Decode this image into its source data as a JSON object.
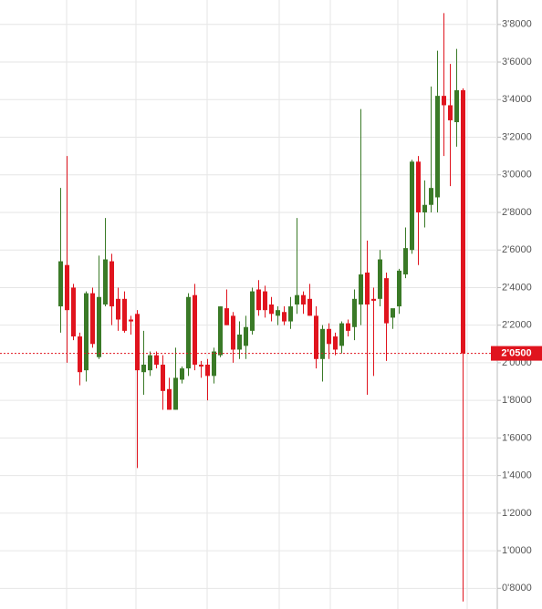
{
  "chart_data": {
    "type": "candlestick",
    "open": [
      2.3,
      2.52,
      2.4,
      2.14,
      1.96,
      2.37,
      2.03,
      2.31,
      2.54,
      2.34,
      2.34,
      2.23,
      2.26,
      1.95,
      1.96,
      2.04,
      1.99,
      1.86,
      1.75,
      1.91,
      1.97,
      2.36,
      1.99,
      1.99,
      1.93,
      2.04,
      2.29,
      2.25,
      2.07,
      2.09,
      2.17,
      2.39,
      2.38,
      2.31,
      2.25,
      2.27,
      2.22,
      2.31,
      2.36,
      2.34,
      2.25,
      2.02,
      2.18,
      2.14,
      2.09,
      2.21,
      2.19,
      2.31,
      2.48,
      2.34,
      2.34,
      2.45,
      2.24,
      2.3,
      2.47,
      2.6,
      3.07,
      2.8,
      2.84,
      2.88,
      3.42,
      3.37,
      3.28,
      3.45
    ],
    "high": [
      2.93,
      3.1,
      2.42,
      2.16,
      2.38,
      2.4,
      2.57,
      2.77,
      2.58,
      2.4,
      2.38,
      2.25,
      2.28,
      2.17,
      2.06,
      2.06,
      2.04,
      1.92,
      2.08,
      1.98,
      2.37,
      2.42,
      2.01,
      2.02,
      2.08,
      2.3,
      2.39,
      2.27,
      2.22,
      2.25,
      2.4,
      2.44,
      2.41,
      2.35,
      2.3,
      2.3,
      2.35,
      2.77,
      2.38,
      2.42,
      2.3,
      2.2,
      2.21,
      2.16,
      2.22,
      2.23,
      2.39,
      3.35,
      2.65,
      2.4,
      2.6,
      2.48,
      2.28,
      2.5,
      2.72,
      3.08,
      3.1,
      2.97,
      3.47,
      3.66,
      3.86,
      3.59,
      3.67,
      3.46
    ],
    "low": [
      2.16,
      2.0,
      2.12,
      1.88,
      1.9,
      2.08,
      2.02,
      2.3,
      2.2,
      2.17,
      2.16,
      2.15,
      1.44,
      1.83,
      1.93,
      1.97,
      1.75,
      1.75,
      1.75,
      1.89,
      1.93,
      1.96,
      1.92,
      1.8,
      1.89,
      2.03,
      2.2,
      2.0,
      2.02,
      2.02,
      2.15,
      2.25,
      2.24,
      2.22,
      2.2,
      2.2,
      2.18,
      2.26,
      2.26,
      2.25,
      1.97,
      1.9,
      2.02,
      2.04,
      2.05,
      2.14,
      2.12,
      2.2,
      1.83,
      1.93,
      2.3,
      2.01,
      2.18,
      2.26,
      2.45,
      2.58,
      2.52,
      2.72,
      2.8,
      2.8,
      3.1,
      2.94,
      3.15,
      0.73
    ],
    "close": [
      2.54,
      2.28,
      2.14,
      1.95,
      2.37,
      2.1,
      2.35,
      2.55,
      2.3,
      2.23,
      2.17,
      2.22,
      1.96,
      1.99,
      2.04,
      1.99,
      1.85,
      1.75,
      1.92,
      1.97,
      2.35,
      1.99,
      1.98,
      1.93,
      2.06,
      2.3,
      2.2,
      2.07,
      2.15,
      2.19,
      2.38,
      2.28,
      2.28,
      2.26,
      2.28,
      2.22,
      2.3,
      2.36,
      2.31,
      2.25,
      2.02,
      2.18,
      2.1,
      2.07,
      2.21,
      2.17,
      2.34,
      2.47,
      2.31,
      2.33,
      2.55,
      2.21,
      2.29,
      2.49,
      2.61,
      3.07,
      2.8,
      2.84,
      2.93,
      3.42,
      3.37,
      3.29,
      3.45,
      2.05
    ],
    "up_color": "#3a7a27",
    "down_color": "#e0141e",
    "ylim": [
      0.69,
      3.93
    ],
    "yticks": [
      {
        "value": 0.8,
        "label": "0'8000"
      },
      {
        "value": 1.0,
        "label": "1'0000"
      },
      {
        "value": 1.2,
        "label": "1'2000"
      },
      {
        "value": 1.4,
        "label": "1'4000"
      },
      {
        "value": 1.6,
        "label": "1'6000"
      },
      {
        "value": 1.8,
        "label": "1'8000"
      },
      {
        "value": 2.0,
        "label": "2'0000"
      },
      {
        "value": 2.2,
        "label": "2'2000"
      },
      {
        "value": 2.4,
        "label": "2'4000"
      },
      {
        "value": 2.6,
        "label": "2'6000"
      },
      {
        "value": 2.8,
        "label": "2'8000"
      },
      {
        "value": 3.0,
        "label": "3'0000"
      },
      {
        "value": 3.2,
        "label": "3'2000"
      },
      {
        "value": 3.4,
        "label": "3'4000"
      },
      {
        "value": 3.6,
        "label": "3'6000"
      },
      {
        "value": 3.8,
        "label": "3'8000"
      }
    ],
    "grid": true,
    "current_price": {
      "value": 2.05,
      "label": "2'0500"
    }
  }
}
